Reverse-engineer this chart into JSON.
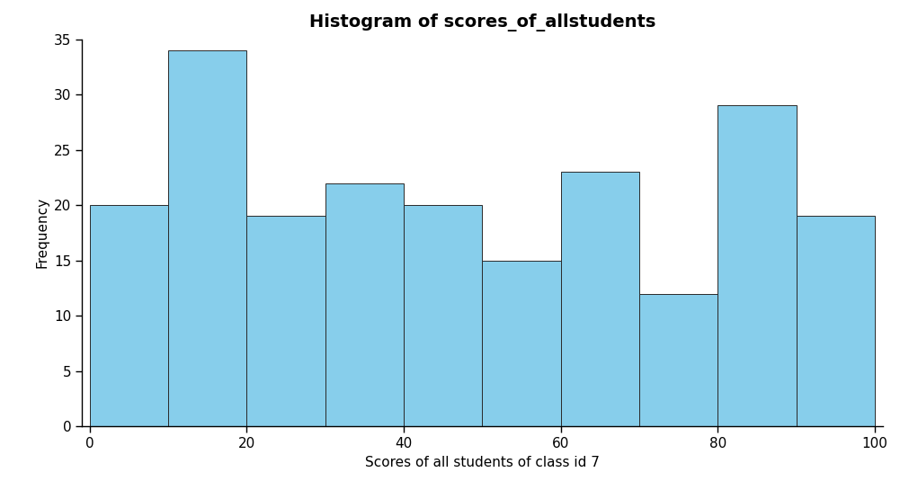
{
  "title": "Histogram of scores_of_allstudents",
  "xlabel": "Scores of all students of class id 7",
  "ylabel": "Frequency",
  "bar_edges": [
    0,
    10,
    20,
    30,
    40,
    50,
    60,
    70,
    80,
    90,
    100
  ],
  "bar_heights": [
    20,
    34,
    19,
    22,
    20,
    15,
    23,
    12,
    29,
    19
  ],
  "bar_color": "#87CEEB",
  "bar_edgecolor": "#2a2a2a",
  "xlim": [
    -1,
    101
  ],
  "ylim": [
    0,
    35
  ],
  "yticks": [
    0,
    5,
    10,
    15,
    20,
    25,
    30,
    35
  ],
  "xticks": [
    0,
    20,
    40,
    60,
    80,
    100
  ],
  "title_fontsize": 14,
  "label_fontsize": 11,
  "tick_fontsize": 11,
  "background_color": "#ffffff"
}
